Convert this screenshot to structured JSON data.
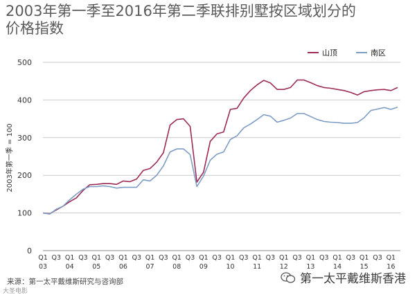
{
  "page": {
    "title_line1": "2003年第一季至2016年第二季联排别墅按区域划分的",
    "title_line2": "价格指数",
    "source": "来源：第一太平戴维斯研究与咨询部",
    "watermark": "第一太平戴维斯香港",
    "logo_text": "大圣电影"
  },
  "chart_data": {
    "type": "line",
    "ylabel": "2003年第一季 = 100",
    "ylim": [
      0,
      500
    ],
    "yticks": [
      0,
      100,
      200,
      300,
      400,
      500
    ],
    "xticks": [
      {
        "i": 0,
        "q": "Q1",
        "y": "03"
      },
      {
        "i": 2,
        "q": "Q3",
        "y": ""
      },
      {
        "i": 4,
        "q": "Q1",
        "y": "04"
      },
      {
        "i": 6,
        "q": "Q3",
        "y": ""
      },
      {
        "i": 8,
        "q": "Q1",
        "y": "05"
      },
      {
        "i": 10,
        "q": "Q3",
        "y": ""
      },
      {
        "i": 12,
        "q": "Q1",
        "y": "06"
      },
      {
        "i": 14,
        "q": "Q3",
        "y": ""
      },
      {
        "i": 16,
        "q": "Q1",
        "y": "07"
      },
      {
        "i": 18,
        "q": "Q3",
        "y": ""
      },
      {
        "i": 20,
        "q": "Q1",
        "y": "08"
      },
      {
        "i": 22,
        "q": "Q3",
        "y": ""
      },
      {
        "i": 24,
        "q": "Q1",
        "y": "09"
      },
      {
        "i": 26,
        "q": "Q3",
        "y": ""
      },
      {
        "i": 28,
        "q": "Q1",
        "y": "10"
      },
      {
        "i": 30,
        "q": "Q3",
        "y": ""
      },
      {
        "i": 32,
        "q": "Q1",
        "y": "11"
      },
      {
        "i": 34,
        "q": "Q3",
        "y": ""
      },
      {
        "i": 36,
        "q": "Q1",
        "y": "12"
      },
      {
        "i": 38,
        "q": "Q3",
        "y": ""
      },
      {
        "i": 40,
        "q": "Q1",
        "y": "13"
      },
      {
        "i": 42,
        "q": "Q3",
        "y": ""
      },
      {
        "i": 44,
        "q": "Q1",
        "y": "14"
      },
      {
        "i": 46,
        "q": "Q3",
        "y": ""
      },
      {
        "i": 48,
        "q": "Q1",
        "y": "15"
      },
      {
        "i": 50,
        "q": "Q3",
        "y": ""
      },
      {
        "i": 52,
        "q": "Q1",
        "y": "16"
      }
    ],
    "n_points": 54,
    "legend_position": "top-right",
    "series": [
      {
        "name": "山顶",
        "color": "#9b2a55",
        "values": [
          100,
          98,
          108,
          118,
          130,
          140,
          160,
          175,
          176,
          178,
          178,
          176,
          185,
          183,
          190,
          213,
          218,
          235,
          260,
          333,
          348,
          350,
          330,
          182,
          208,
          290,
          310,
          315,
          375,
          378,
          405,
          425,
          440,
          452,
          445,
          428,
          428,
          433,
          453,
          453,
          446,
          438,
          433,
          431,
          428,
          425,
          420,
          413,
          422,
          425,
          427,
          428,
          425,
          433
        ]
      },
      {
        "name": "南区",
        "color": "#7d9cc4",
        "values": [
          100,
          97,
          110,
          118,
          135,
          150,
          163,
          170,
          170,
          172,
          170,
          166,
          168,
          168,
          168,
          188,
          185,
          200,
          225,
          262,
          270,
          270,
          255,
          170,
          198,
          240,
          256,
          262,
          295,
          305,
          326,
          336,
          348,
          361,
          357,
          341,
          346,
          352,
          364,
          364,
          356,
          348,
          343,
          341,
          340,
          338,
          338,
          340,
          353,
          372,
          376,
          380,
          375,
          381
        ]
      }
    ]
  }
}
